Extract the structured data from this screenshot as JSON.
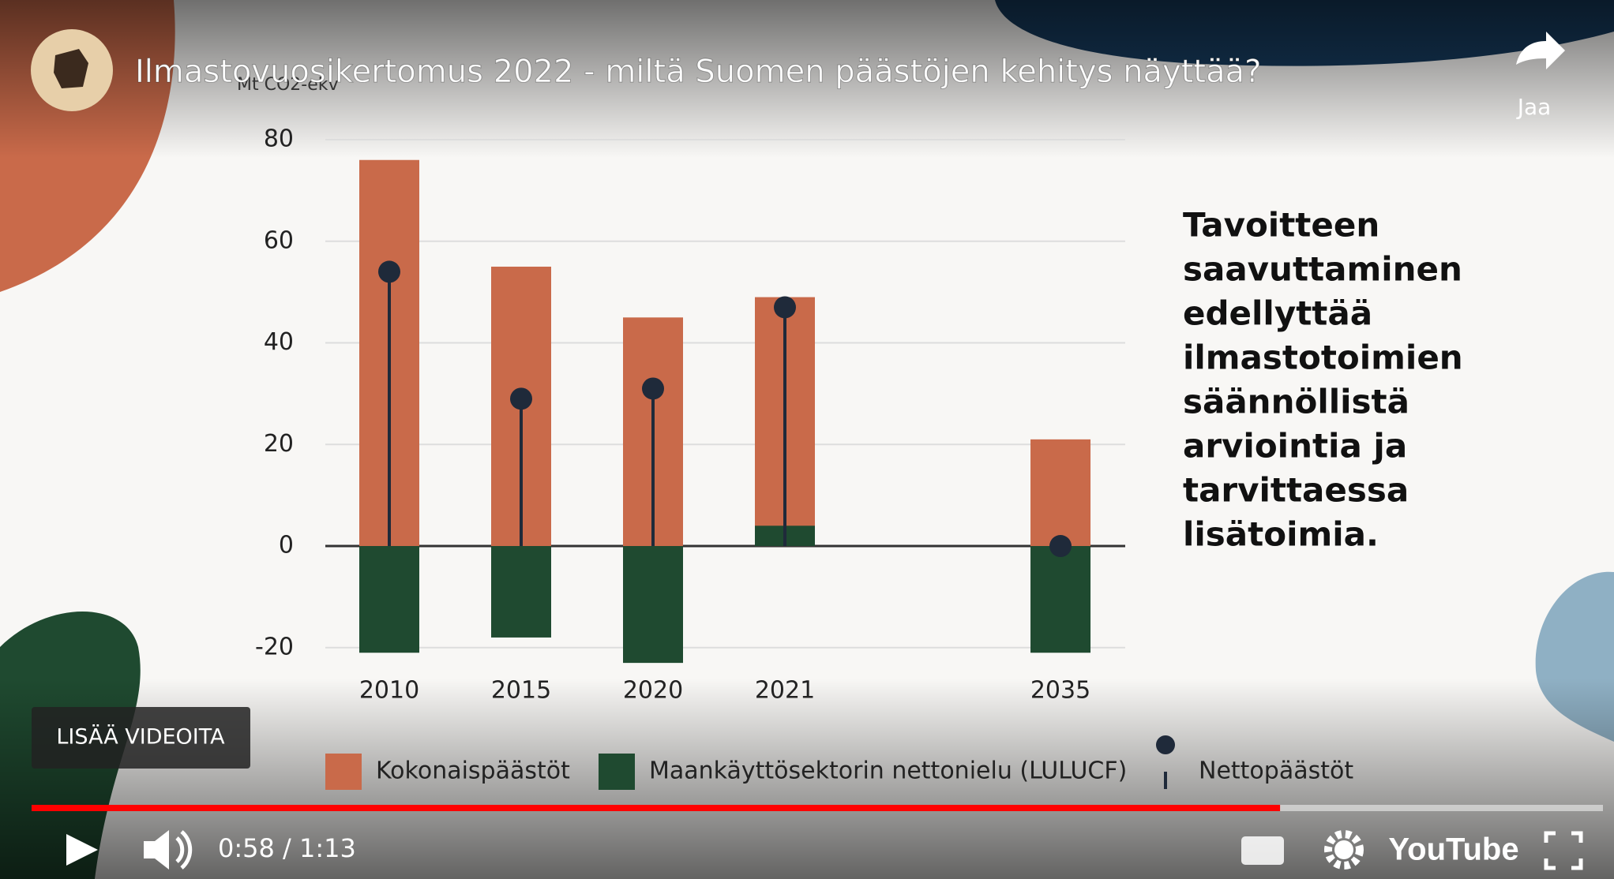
{
  "player": {
    "video_title": "Ilmastovuosikertomus 2022 - miltä Suomen päästöjen kehitys näyttää?",
    "share": "Jaa",
    "more_videos": "LISÄÄ VIDEOITA",
    "time": "0:58 / 1:13",
    "brand": "YouTube"
  },
  "chart_data": {
    "type": "bar",
    "y_label": "Mt CO2-ekv",
    "categories": [
      "2010",
      "2015",
      "2020",
      "2021",
      "2035"
    ],
    "series": [
      {
        "name": "Kokonaispäästöt",
        "type": "bar",
        "color": "#c96a4a",
        "values": [
          76,
          55,
          45,
          49,
          21
        ]
      },
      {
        "name": "Maankäyttösektorin nettonielu (LULUCF)",
        "type": "bar",
        "color": "#1f4a30",
        "values": [
          -21,
          -18,
          -23,
          4,
          -21
        ]
      },
      {
        "name": "Nettopäästöt",
        "type": "lollipop",
        "color": "#1f2a3a",
        "values": [
          54,
          29,
          31,
          47,
          0
        ]
      }
    ],
    "ylim": [
      -25,
      80
    ],
    "yticks": [
      -20,
      0,
      20,
      40,
      60,
      80
    ],
    "grid": true,
    "annotation": [
      "Tavoitteen",
      "saavuttaminen",
      "edellyttää",
      "ilmastotoimien",
      "säännöllistä",
      "arviointia ja",
      "tarvittaessa",
      "lisätoimia."
    ]
  }
}
